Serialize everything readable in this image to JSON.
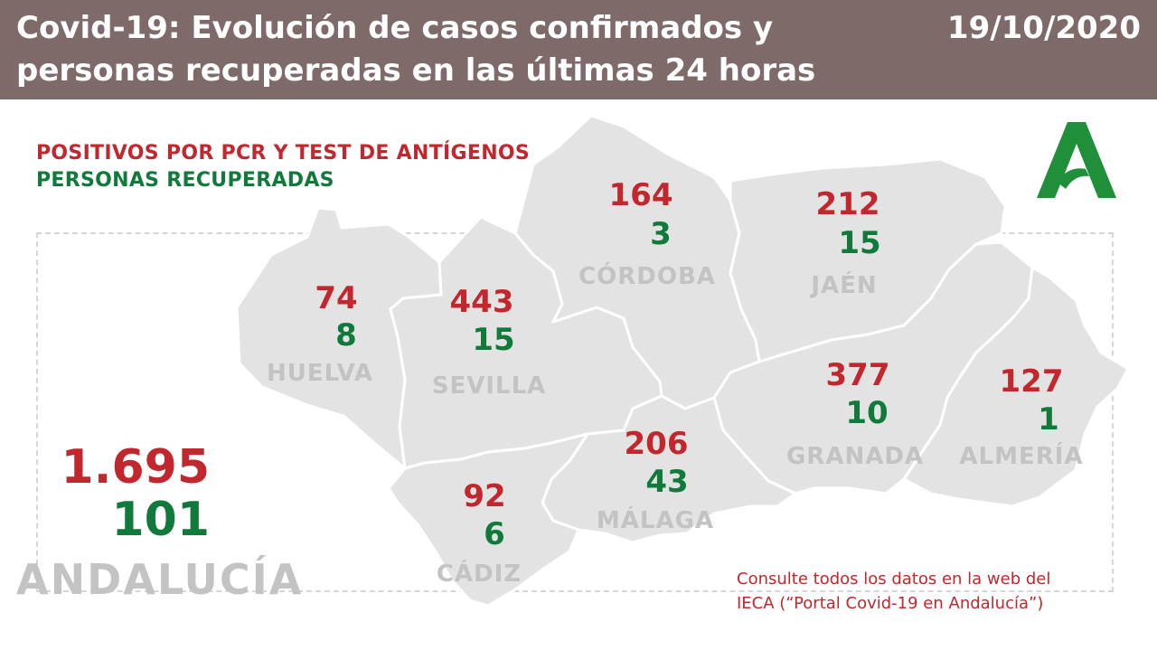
{
  "header": {
    "title_line1": "Covid-19: Evolución de casos confirmados y",
    "title_line2": "personas recuperadas en las últimas 24 horas",
    "date": "19/10/2020"
  },
  "legend": {
    "positives": "POSITIVOS POR PCR Y TEST DE ANTÍGENOS",
    "recovered": "PERSONAS RECUPERADAS"
  },
  "colors": {
    "header_bg": "#7f6a6a",
    "positives": "#c1272d",
    "recovered": "#0f7a3a",
    "map_fill": "#e3e3e3",
    "province_label": "#c3c3c3",
    "logo": "#1f8f3a"
  },
  "provinces": [
    {
      "id": "huelva",
      "name": "HUELVA",
      "positives": "74",
      "recovered": "8"
    },
    {
      "id": "sevilla",
      "name": "SEVILLA",
      "positives": "443",
      "recovered": "15"
    },
    {
      "id": "cordoba",
      "name": "CÓRDOBA",
      "positives": "164",
      "recovered": "3"
    },
    {
      "id": "jaen",
      "name": "JAÉN",
      "positives": "212",
      "recovered": "15"
    },
    {
      "id": "granada",
      "name": "GRANADA",
      "positives": "377",
      "recovered": "10"
    },
    {
      "id": "almeria",
      "name": "ALMERÍA",
      "positives": "127",
      "recovered": "1"
    },
    {
      "id": "malaga",
      "name": "MÁLAGA",
      "positives": "206",
      "recovered": "43"
    },
    {
      "id": "cadiz",
      "name": "CÁDIZ",
      "positives": "92",
      "recovered": "6"
    }
  ],
  "region": {
    "name": "ANDALUCÍA",
    "positives": "1.695",
    "recovered": "101"
  },
  "footnote": {
    "line1": "Consulte todos los datos en la web del",
    "line2": "IECA (“Portal Covid-19 en Andalucía”)"
  },
  "icons": {
    "logo": "junta-de-andalucia-logo-icon"
  }
}
